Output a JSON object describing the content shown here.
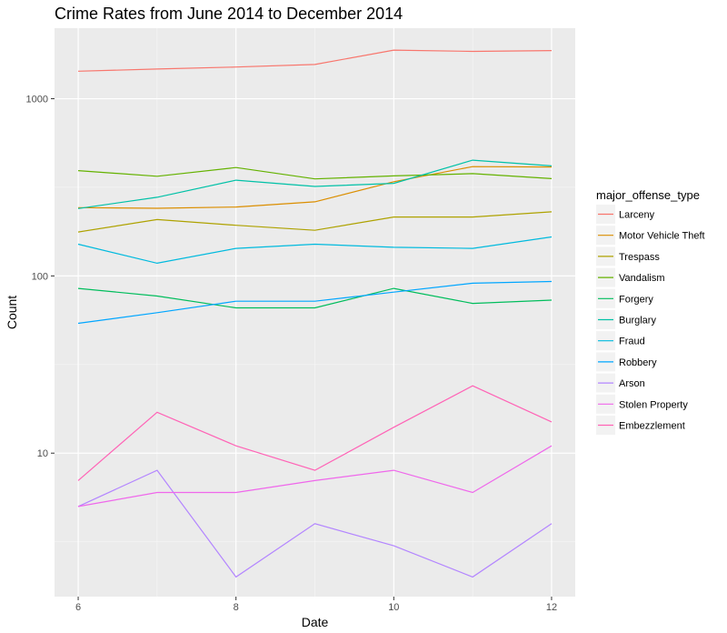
{
  "chart_data": {
    "type": "line",
    "title": "Crime Rates from June 2014 to December 2014",
    "xlabel": "Date",
    "ylabel": "Count",
    "yscale": "log10",
    "xlim": [
      5.7,
      12.3
    ],
    "ylim": [
      1.55,
      2500
    ],
    "x": [
      6,
      7,
      8,
      9,
      10,
      11,
      12
    ],
    "x_ticks": [
      6,
      8,
      10,
      12
    ],
    "x_tick_labels": [
      "6",
      "8",
      "10",
      "12"
    ],
    "y_ticks": [
      10,
      100,
      1000
    ],
    "y_tick_labels": [
      "10",
      "100",
      "1000"
    ],
    "grid": true,
    "legend_title": "major_offense_type",
    "legend_position": "right",
    "series": [
      {
        "name": "Larceny",
        "color": "#F8766D",
        "values": [
          1430,
          1470,
          1510,
          1560,
          1880,
          1850,
          1870
        ]
      },
      {
        "name": "Motor Vehicle Theft",
        "color": "#DB8E00",
        "values": [
          243,
          241,
          245,
          262,
          340,
          414,
          412
        ]
      },
      {
        "name": "Trespass",
        "color": "#AEA200",
        "values": [
          177,
          208,
          193,
          181,
          215,
          215,
          230
        ]
      },
      {
        "name": "Vandalism",
        "color": "#64B200",
        "values": [
          393,
          365,
          409,
          353,
          367,
          378,
          354
        ]
      },
      {
        "name": "Forgery",
        "color": "#00BD5C",
        "values": [
          85,
          77,
          66,
          66,
          85,
          70,
          73
        ]
      },
      {
        "name": "Burglary",
        "color": "#00C1A7",
        "values": [
          240,
          278,
          347,
          320,
          333,
          450,
          418
        ]
      },
      {
        "name": "Fraud",
        "color": "#00BADE",
        "values": [
          151,
          118,
          143,
          151,
          145,
          143,
          166
        ]
      },
      {
        "name": "Robbery",
        "color": "#00A6FF",
        "values": [
          54,
          62,
          72,
          72,
          81,
          91,
          93
        ]
      },
      {
        "name": "Arson",
        "color": "#B385FF",
        "values": [
          5,
          8,
          2,
          4,
          3,
          2,
          4
        ]
      },
      {
        "name": "Stolen Property",
        "color": "#EF67EB",
        "values": [
          5,
          6,
          6,
          7,
          8,
          6,
          11
        ]
      },
      {
        "name": "Embezzlement",
        "color": "#FF63B6",
        "values": [
          7,
          17,
          11,
          8,
          14,
          24,
          15
        ]
      }
    ]
  }
}
